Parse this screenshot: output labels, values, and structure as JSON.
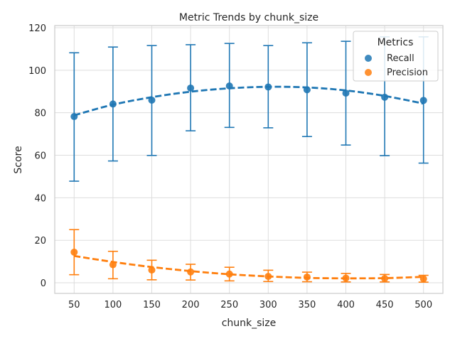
{
  "chart_data": {
    "type": "scatter",
    "title": "Metric Trends by chunk_size",
    "xlabel": "chunk_size",
    "ylabel": "Score",
    "x": [
      50,
      100,
      150,
      200,
      250,
      300,
      350,
      400,
      450,
      500
    ],
    "x_tick_labels": [
      "50",
      "100",
      "150",
      "200",
      "250",
      "300",
      "350",
      "400",
      "450",
      "500"
    ],
    "y_ticks": [
      0,
      20,
      40,
      60,
      80,
      100,
      120
    ],
    "y_tick_labels": [
      "0",
      "20",
      "40",
      "60",
      "80",
      "100",
      "120"
    ],
    "xlim": [
      25,
      525
    ],
    "ylim": [
      -5,
      121
    ],
    "grid": true,
    "legend": {
      "title": "Metrics",
      "placement": "top-right"
    },
    "series": [
      {
        "name": "Recall",
        "color": "#1f77b4",
        "values": [
          78.2,
          84.1,
          85.9,
          91.6,
          92.6,
          92.1,
          90.8,
          89.2,
          87.3,
          85.8
        ],
        "err_low": [
          47.8,
          57.3,
          59.9,
          71.5,
          73.1,
          72.9,
          68.8,
          64.8,
          59.8,
          56.3
        ],
        "err_high": [
          108.2,
          110.9,
          111.6,
          112.0,
          112.6,
          111.6,
          112.9,
          113.6,
          115.7,
          115.7
        ],
        "trend": [
          78.8,
          83.8,
          87.3,
          89.9,
          91.5,
          92.2,
          91.9,
          90.5,
          87.9,
          84.3
        ]
      },
      {
        "name": "Precision",
        "color": "#ff7f0e",
        "values": [
          14.4,
          8.5,
          6.0,
          5.1,
          4.1,
          3.0,
          2.7,
          2.2,
          2.0,
          1.9
        ],
        "err_low": [
          3.8,
          1.9,
          1.4,
          1.3,
          0.9,
          0.6,
          0.5,
          0.4,
          0.4,
          0.3
        ],
        "err_high": [
          25.0,
          14.8,
          10.6,
          8.7,
          7.3,
          5.9,
          5.0,
          4.4,
          3.9,
          3.5
        ],
        "trend": [
          12.6,
          9.8,
          7.4,
          5.5,
          4.0,
          3.0,
          2.3,
          2.1,
          2.2,
          2.8
        ]
      }
    ]
  }
}
